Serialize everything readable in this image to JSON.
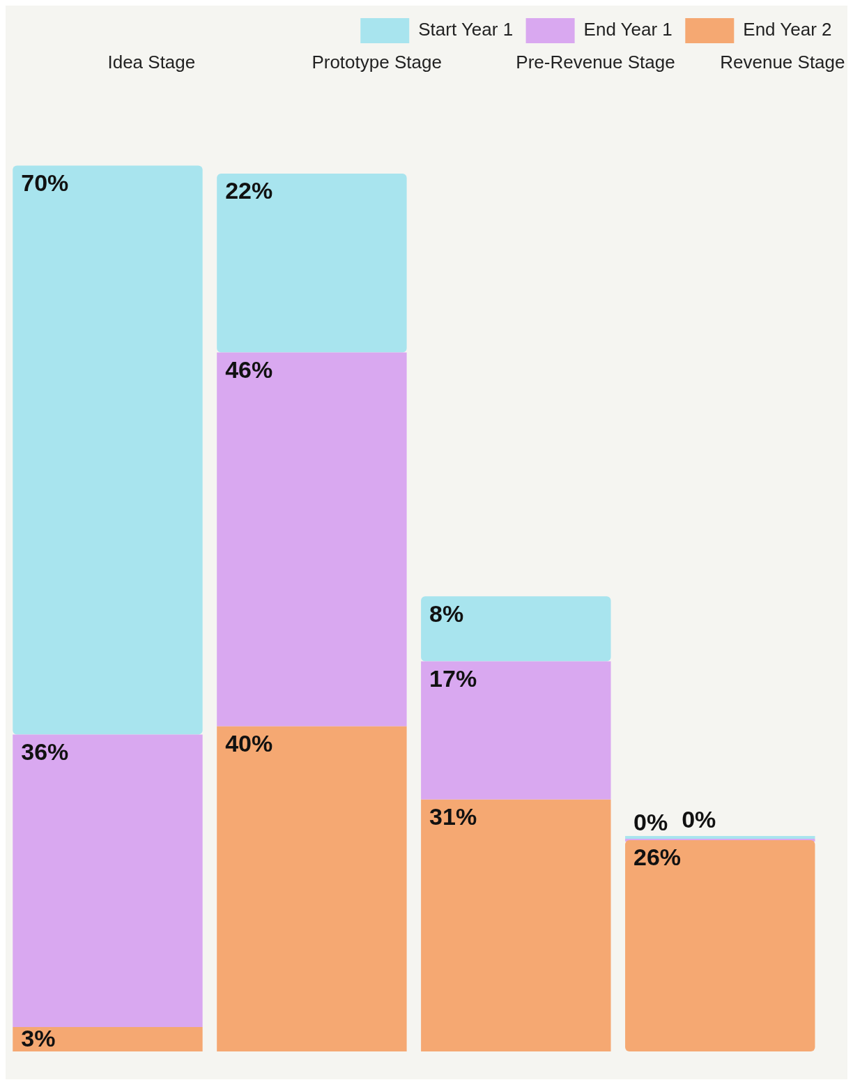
{
  "chart_data": {
    "type": "bar",
    "stacked": true,
    "categories": [
      "Idea Stage",
      "Prototype Stage",
      "Pre-Revenue Stage",
      "Revenue Stage"
    ],
    "series": [
      {
        "name": "End Year 2",
        "color": "#f5a872",
        "values": [
          3,
          40,
          31,
          26
        ],
        "value_labels": [
          "3%",
          "40%",
          "31%",
          "26%"
        ]
      },
      {
        "name": "End Year 1",
        "color": "#d9a8f0",
        "values": [
          36,
          46,
          17,
          0
        ],
        "value_labels": [
          "36%",
          "46%",
          "17%",
          "0%"
        ]
      },
      {
        "name": "Start Year 1",
        "color": "#a8e4ee",
        "values": [
          70,
          22,
          8,
          0
        ],
        "value_labels": [
          "70%",
          "22%",
          "8%",
          "0%"
        ]
      }
    ],
    "legend": "top right",
    "tick_labels": "x",
    "grid": false
  }
}
